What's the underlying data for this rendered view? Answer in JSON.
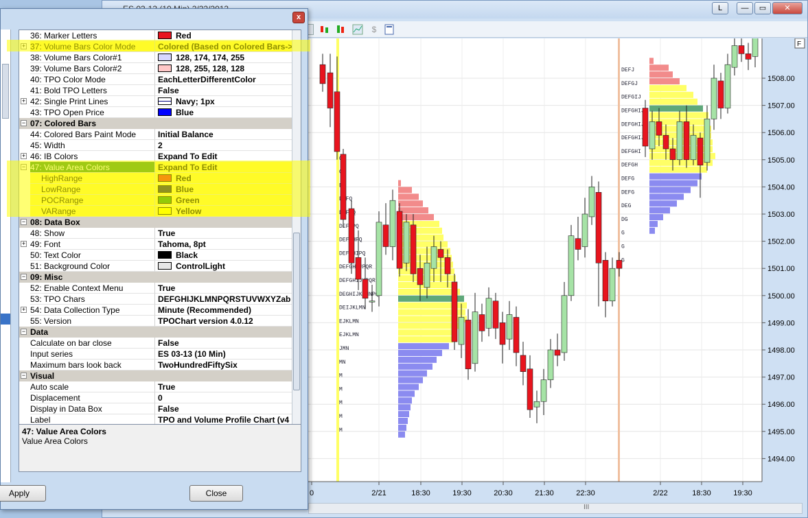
{
  "chart_window": {
    "title": "ES 03-13 (10 Min)  2/22/2013",
    "buttons": {
      "layout": "L",
      "minimize": "—",
      "restore": "▭",
      "close": "✕"
    },
    "corner_label": "F",
    "scroll_marker": "III"
  },
  "chart_data": {
    "type": "candlestick",
    "price_axis": {
      "labels": [
        "1508.00",
        "1507.00",
        "1506.00",
        "1505.00",
        "1504.00",
        "1503.00",
        "1502.00",
        "1501.00",
        "1500.00",
        "1499.00",
        "1498.00",
        "1497.00",
        "1496.00",
        "1495.00",
        "1494.00"
      ]
    },
    "time_axis": {
      "labels": [
        "0",
        "2/21",
        "18:30",
        "19:30",
        "20:30",
        "21:30",
        "22:30",
        "2/22",
        "18:30",
        "19:30"
      ]
    },
    "colors": {
      "up": "#a6e3a6",
      "down": "#e8141e",
      "value_area": "#ffff66",
      "high_range": "#f28b8b",
      "low_range": "#8b8bf0",
      "poc": "#5fa87a"
    }
  },
  "dialog": {
    "close_glyph": "x",
    "rows": [
      {
        "type": "prop",
        "name": "36: Marker Letters",
        "value": "Red",
        "swatch": "#e8141e"
      },
      {
        "type": "prop",
        "exp": "+",
        "name": "37: Volume Bars Color Mode",
        "value": "Colored (Based on Colored Bars->V",
        "hl": true
      },
      {
        "type": "prop",
        "name": "38: Volume Bars Color#1",
        "value": "128, 174, 174, 255",
        "swatch": "#d8d8ff"
      },
      {
        "type": "prop",
        "name": "39: Volume Bars Color#2",
        "value": "128, 255, 128, 128",
        "swatch": "#ffc8c8"
      },
      {
        "type": "prop",
        "name": "40: TPO Color Mode",
        "value": "EachLetterDifferentColor"
      },
      {
        "type": "prop",
        "name": "41: Bold TPO Letters",
        "value": "False"
      },
      {
        "type": "prop",
        "exp": "+",
        "name": "42: Single Print Lines",
        "value": "Navy; 1px",
        "swatch": "line"
      },
      {
        "type": "prop",
        "name": "43: TPO Open Price",
        "value": "Blue",
        "swatch": "#0000ff"
      },
      {
        "type": "cat",
        "exp": "−",
        "name": "07: Colored Bars"
      },
      {
        "type": "prop",
        "name": "44: Colored Bars Paint Mode",
        "value": "Initial Balance"
      },
      {
        "type": "prop",
        "name": "45: Width",
        "value": "2"
      },
      {
        "type": "prop",
        "exp": "+",
        "name": "46: IB Colors",
        "value": "Expand To Edit"
      },
      {
        "type": "prop",
        "exp": "−",
        "name": "47: Value Area Colors",
        "value": "Expand To Edit",
        "sel": true
      },
      {
        "type": "prop",
        "name": "HighRange",
        "value": "Red",
        "swatch": "#e8141e",
        "indent": true,
        "hl": true
      },
      {
        "type": "prop",
        "name": "LowRange",
        "value": "Blue",
        "swatch": "#0a0a4a",
        "indent": true,
        "hl": true
      },
      {
        "type": "prop",
        "name": "POCRange",
        "value": "Green",
        "swatch": "#138a13",
        "indent": true,
        "hl": true
      },
      {
        "type": "prop",
        "name": "VARange",
        "value": "Yellow",
        "swatch": "#ffff00",
        "indent": true,
        "hl": true
      },
      {
        "type": "cat",
        "exp": "−",
        "name": "08: Data Box"
      },
      {
        "type": "prop",
        "name": "48: Show",
        "value": "True"
      },
      {
        "type": "prop",
        "exp": "+",
        "name": "49: Font",
        "value": "Tahoma, 8pt"
      },
      {
        "type": "prop",
        "name": "50: Text Color",
        "value": "Black",
        "swatch": "#000000"
      },
      {
        "type": "prop",
        "name": "51: Background Color",
        "value": "ControlLight",
        "swatch": "#e6e6e6"
      },
      {
        "type": "cat",
        "exp": "−",
        "name": "09: Misc"
      },
      {
        "type": "prop",
        "name": "52: Enable Context Menu",
        "value": "True"
      },
      {
        "type": "prop",
        "name": "53: TPO Chars",
        "value": "DEFGHIJKLMNPQRSTUVWXYZab"
      },
      {
        "type": "prop",
        "exp": "+",
        "name": "54: Data Collection Type",
        "value": "Minute (Recommended)"
      },
      {
        "type": "prop",
        "name": "55: Version",
        "value": "TPOChart version 4.0.12"
      },
      {
        "type": "cat",
        "exp": "−",
        "name": "Data"
      },
      {
        "type": "prop",
        "name": "Calculate on bar close",
        "value": "False"
      },
      {
        "type": "prop",
        "name": "Input series",
        "value": "ES 03-13 (10 Min)"
      },
      {
        "type": "prop",
        "name": "Maximum bars look back",
        "value": "TwoHundredFiftySix"
      },
      {
        "type": "cat",
        "exp": "−",
        "name": "Visual"
      },
      {
        "type": "prop",
        "name": "Auto scale",
        "value": "True"
      },
      {
        "type": "prop",
        "name": "Displacement",
        "value": "0"
      },
      {
        "type": "prop",
        "name": "Display in Data Box",
        "value": "False"
      },
      {
        "type": "prop",
        "name": "Label",
        "value": "TPO and Volume Profile Chart (v4"
      }
    ],
    "description": {
      "title": "47: Value Area Colors",
      "text": "Value Area Colors"
    },
    "apply_label": "Apply",
    "close_label": "Close"
  }
}
